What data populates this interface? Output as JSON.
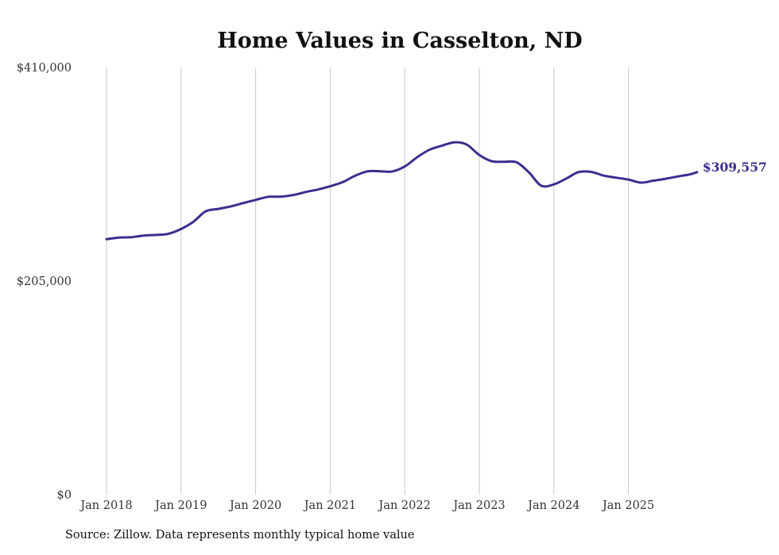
{
  "chart_data": {
    "type": "line",
    "title": "Home Values in Casselton, ND",
    "xlabel": "",
    "ylabel": "",
    "ylim": [
      0,
      410000
    ],
    "y_ticks": [
      {
        "value": 0,
        "label": "$0"
      },
      {
        "value": 205000,
        "label": "$205,000"
      },
      {
        "value": 410000,
        "label": "$410,000"
      }
    ],
    "x_ticks": [
      {
        "value": 2018,
        "label": "Jan 2018"
      },
      {
        "value": 2019,
        "label": "Jan 2019"
      },
      {
        "value": 2020,
        "label": "Jan 2020"
      },
      {
        "value": 2021,
        "label": "Jan 2021"
      },
      {
        "value": 2022,
        "label": "Jan 2022"
      },
      {
        "value": 2023,
        "label": "Jan 2023"
      },
      {
        "value": 2024,
        "label": "Jan 2024"
      },
      {
        "value": 2025,
        "label": "Jan 2025"
      }
    ],
    "grid": "vertical",
    "series": [
      {
        "name": "Typical home value",
        "color": "#3b2f8f",
        "x": [
          2018.0,
          2018.17,
          2018.33,
          2018.5,
          2018.67,
          2018.83,
          2019.0,
          2019.17,
          2019.33,
          2019.5,
          2019.67,
          2019.83,
          2020.0,
          2020.17,
          2020.33,
          2020.5,
          2020.67,
          2020.83,
          2021.0,
          2021.17,
          2021.33,
          2021.5,
          2021.67,
          2021.83,
          2022.0,
          2022.17,
          2022.33,
          2022.5,
          2022.67,
          2022.83,
          2023.0,
          2023.17,
          2023.33,
          2023.5,
          2023.67,
          2023.83,
          2024.0,
          2024.17,
          2024.33,
          2024.5,
          2024.67,
          2024.83,
          2025.0,
          2025.17,
          2025.33,
          2025.5,
          2025.67,
          2025.83,
          2025.92
        ],
        "values": [
          245200,
          246800,
          247100,
          248700,
          249300,
          250400,
          255000,
          262200,
          272000,
          274300,
          276700,
          279800,
          282900,
          285900,
          286000,
          287500,
          290500,
          292800,
          296000,
          300000,
          306000,
          310300,
          310400,
          310200,
          315000,
          324000,
          331000,
          335000,
          338200,
          336000,
          326000,
          320000,
          319500,
          319000,
          309000,
          296500,
          297800,
          303500,
          309600,
          309800,
          306200,
          304300,
          302400,
          299500,
          301300,
          303200,
          305500,
          307500,
          309557
        ]
      }
    ],
    "end_label": "$309,557",
    "source": "Source: Zillow. Data represents monthly typical home value"
  }
}
